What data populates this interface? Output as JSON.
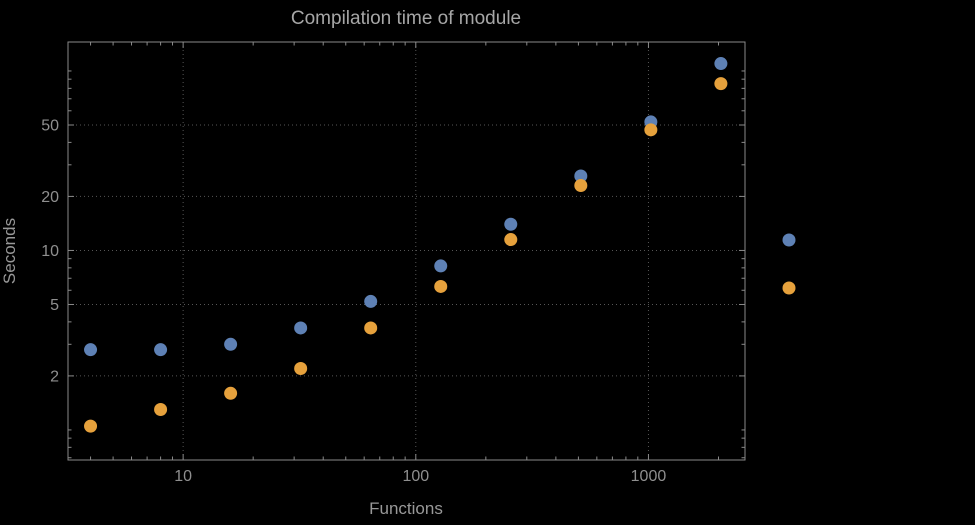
{
  "chart_data": {
    "type": "scatter",
    "title": "Compilation time of module",
    "xlabel": "Functions",
    "ylabel": "Seconds",
    "x_scale": "log",
    "y_scale": "log",
    "xlim": [
      3.2,
      2600
    ],
    "ylim": [
      0.68,
      145
    ],
    "x_ticks": [
      10,
      100,
      1000
    ],
    "y_ticks": [
      2,
      5,
      10,
      20,
      50
    ],
    "grid": true,
    "x": [
      4,
      8,
      16,
      32,
      64,
      128,
      256,
      512,
      1024,
      2048
    ],
    "series": [
      {
        "name": "series-1-blue",
        "color": "#5e81b5",
        "values": [
          2.8,
          2.8,
          3.0,
          3.7,
          5.2,
          8.2,
          14,
          26,
          52,
          110
        ]
      },
      {
        "name": "series-2-orange",
        "color": "#e6a13c",
        "values": [
          1.05,
          1.3,
          1.6,
          2.2,
          3.7,
          6.3,
          11.5,
          23,
          47,
          85
        ]
      }
    ],
    "legend": {
      "position": "right",
      "markers": [
        {
          "series": "series-1-blue",
          "color": "#5e81b5"
        },
        {
          "series": "series-2-orange",
          "color": "#e6a13c"
        }
      ]
    },
    "colors": {
      "background": "#000000",
      "text": "#9a9a9a",
      "grid": "#565656",
      "frame": "#8a8a8a"
    }
  }
}
